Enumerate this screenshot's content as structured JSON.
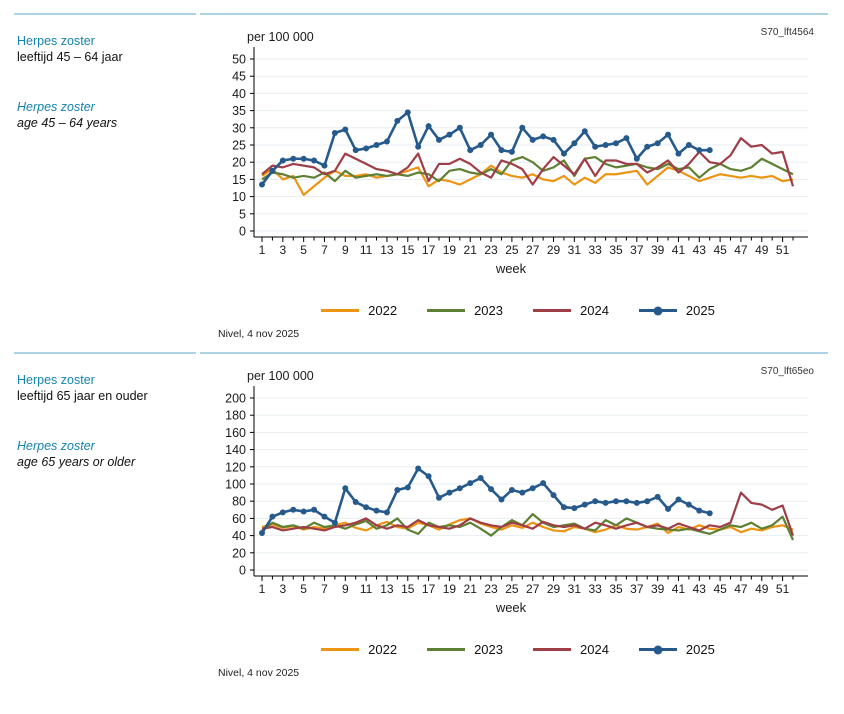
{
  "sections": [
    {
      "title_nl": "Herpes zoster",
      "subtitle_nl": "leeftijd 45 – 64 jaar",
      "title_en": "Herpes zoster",
      "subtitle_en": "age 45 – 64 years",
      "code": "S70_lft4564",
      "source_note": "Nivel, 4 nov 2025",
      "chart_data": {
        "type": "line",
        "title": "per 100 000",
        "xlabel": "week",
        "ylabel": "per 100 000",
        "ylim": [
          0,
          50
        ],
        "ytick_step": 5,
        "weeks_total": 52,
        "xticks": [
          1,
          3,
          5,
          7,
          9,
          11,
          13,
          15,
          17,
          19,
          21,
          23,
          25,
          27,
          29,
          31,
          33,
          35,
          37,
          39,
          41,
          43,
          45,
          47,
          49,
          51
        ],
        "grid": true,
        "legend_position": "bottom",
        "series": [
          {
            "name": "2022",
            "color": "#ee9413",
            "marker": false,
            "values": [
              16,
              18,
              15,
              16,
              10.5,
              13,
              15.5,
              17.5,
              16,
              16,
              16.5,
              15.5,
              16,
              16.5,
              17.5,
              18.5,
              13,
              15,
              14.5,
              13.5,
              15,
              16.5,
              19,
              17,
              16,
              15.5,
              16.5,
              15,
              14.5,
              16,
              13.5,
              15.5,
              14,
              16.5,
              16.5,
              17,
              17.5,
              13.5,
              16,
              18.5,
              17.5,
              16,
              14.5,
              15.5,
              16.5,
              16,
              15.5,
              16,
              15.5,
              16,
              14.5,
              15
            ]
          },
          {
            "name": "2023",
            "color": "#5e8033",
            "marker": false,
            "values": [
              15,
              17,
              16.5,
              15.5,
              16,
              15.5,
              17,
              14.5,
              17.5,
              15.5,
              16,
              16.5,
              16,
              16.5,
              16,
              17,
              16.5,
              14.5,
              17.5,
              18,
              17,
              16.5,
              18,
              16.5,
              20.5,
              21.5,
              20,
              17.5,
              18.5,
              20.5,
              16,
              21,
              21.5,
              19.5,
              18.5,
              19,
              19.5,
              18.5,
              18,
              19.5,
              18,
              18.5,
              15.5,
              18,
              19.5,
              18,
              17.5,
              18.5,
              21,
              19.5,
              18,
              16.5
            ]
          },
          {
            "name": "2024",
            "color": "#9e3e47",
            "marker": false,
            "values": [
              16.5,
              19,
              18.5,
              19.5,
              19,
              18.5,
              16.5,
              17.5,
              22.5,
              21,
              19.5,
              18,
              17.5,
              16.5,
              18.5,
              22.5,
              14.5,
              19.5,
              19.5,
              21,
              19.5,
              17,
              15.5,
              20.5,
              19.5,
              18,
              13.5,
              18,
              21.5,
              19,
              16.5,
              21,
              16,
              20.5,
              20.5,
              19.5,
              19.5,
              17,
              18.5,
              20.5,
              17,
              19.5,
              23,
              20,
              19.5,
              22,
              27,
              24.5,
              25,
              22.5,
              23,
              13
            ]
          },
          {
            "name": "2025",
            "color": "#275a8c",
            "marker": true,
            "values": [
              13.5,
              17.5,
              20.5,
              21,
              21,
              20.5,
              19,
              28.5,
              29.5,
              23.5,
              24,
              25,
              26,
              32,
              34.5,
              24.5,
              30.5,
              26.5,
              28,
              30,
              23.5,
              25,
              28,
              23.5,
              23,
              30,
              26.5,
              27.5,
              26.5,
              22.5,
              25.5,
              29,
              24.5,
              25,
              25.5,
              27,
              21,
              24.5,
              25.5,
              28,
              22.5,
              25,
              23.5,
              23.5
            ]
          }
        ]
      }
    },
    {
      "title_nl": "Herpes zoster",
      "subtitle_nl": "leeftijd 65 jaar en ouder",
      "title_en": "Herpes zoster",
      "subtitle_en": "age 65 years or older",
      "code": "S70_lft65eo",
      "source_note": "Nivel, 4 nov 2025",
      "chart_data": {
        "type": "line",
        "title": "per 100 000",
        "xlabel": "week",
        "ylabel": "per 100 000",
        "ylim": [
          0,
          200
        ],
        "ytick_step": 20,
        "weeks_total": 52,
        "xticks": [
          1,
          3,
          5,
          7,
          9,
          11,
          13,
          15,
          17,
          19,
          21,
          23,
          25,
          27,
          29,
          31,
          33,
          35,
          37,
          39,
          41,
          43,
          45,
          47,
          49,
          51
        ],
        "grid": true,
        "legend_position": "bottom",
        "series": [
          {
            "name": "2022",
            "color": "#ee9413",
            "marker": false,
            "values": [
              50,
              53,
              49,
              51,
              47,
              50,
              48,
              52,
              55,
              49,
              46,
              52,
              56,
              50,
              48,
              55,
              52,
              47,
              53,
              58,
              60,
              54,
              50,
              47,
              52,
              49,
              55,
              50,
              46,
              45,
              50,
              48,
              44,
              47,
              52,
              48,
              47,
              50,
              54,
              43,
              50,
              47,
              52,
              48,
              47,
              50,
              44,
              48,
              46,
              50,
              52,
              47
            ]
          },
          {
            "name": "2023",
            "color": "#5e8033",
            "marker": false,
            "values": [
              46,
              55,
              50,
              52,
              48,
              55,
              50,
              52,
              48,
              53,
              57,
              48,
              52,
              60,
              47,
              42,
              55,
              50,
              52,
              50,
              55,
              48,
              40,
              50,
              58,
              52,
              65,
              55,
              50,
              52,
              54,
              48,
              46,
              58,
              52,
              60,
              55,
              50,
              48,
              47,
              46,
              48,
              45,
              42,
              47,
              52,
              50,
              55,
              48,
              52,
              62,
              35
            ]
          },
          {
            "name": "2024",
            "color": "#9e3e47",
            "marker": false,
            "values": [
              48,
              50,
              46,
              48,
              50,
              48,
              46,
              50,
              52,
              55,
              60,
              52,
              48,
              52,
              50,
              58,
              52,
              50,
              48,
              52,
              60,
              55,
              52,
              50,
              55,
              52,
              48,
              56,
              52,
              50,
              52,
              48,
              55,
              52,
              48,
              52,
              55,
              50,
              52,
              48,
              54,
              50,
              46,
              52,
              50,
              55,
              90,
              78,
              76,
              70,
              75,
              40
            ]
          },
          {
            "name": "2025",
            "color": "#275a8c",
            "marker": true,
            "values": [
              43,
              62,
              67,
              70,
              68,
              70,
              62,
              55,
              95,
              79,
              73,
              69,
              67,
              93,
              96,
              118,
              109,
              84,
              90,
              95,
              101,
              107,
              94,
              82,
              93,
              90,
              95,
              101,
              87,
              73,
              72,
              76,
              80,
              78,
              80,
              80,
              78,
              80,
              85,
              71,
              82,
              76,
              69,
              66
            ]
          }
        ]
      }
    }
  ]
}
